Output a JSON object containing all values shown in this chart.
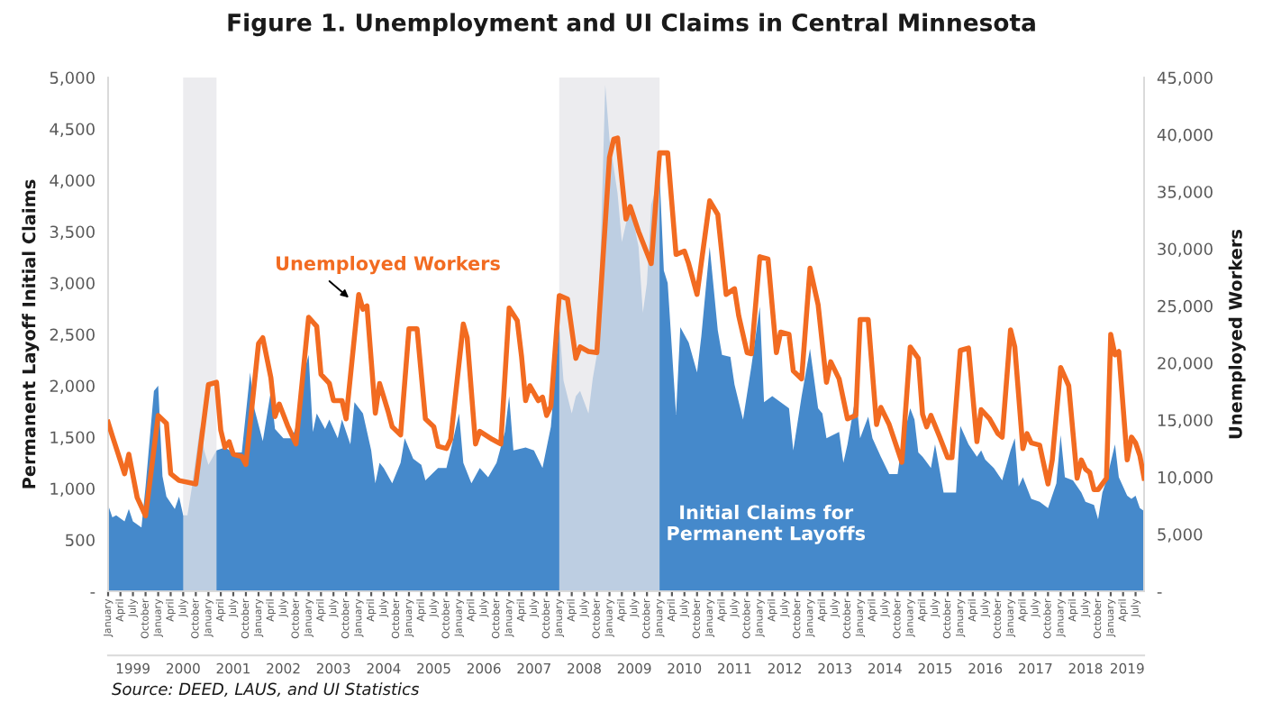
{
  "chart_data": {
    "type": "area",
    "title": "Figure 1. Unemployment and UI Claims in Central Minnesota",
    "ylabel": "Permanent Layoff Initial Claims",
    "y2label": "Unemployed Workers",
    "xlim": [
      "1999-01",
      "2019-09"
    ],
    "xticks": [
      {
        "value": "1999-01",
        "label": "January"
      },
      {
        "value": "1999-04",
        "label": "April"
      },
      {
        "value": "1999-07",
        "label": "July"
      },
      {
        "value": "1999-10",
        "label": "October"
      },
      {
        "value": "2000-01",
        "label": "January"
      },
      {
        "value": "2000-04",
        "label": "April"
      },
      {
        "value": "2000-07",
        "label": "July"
      },
      {
        "value": "2000-10",
        "label": "October"
      },
      {
        "value": "2001-01",
        "label": "January"
      },
      {
        "value": "2001-04",
        "label": "April"
      },
      {
        "value": "2001-07",
        "label": "July"
      },
      {
        "value": "2001-10",
        "label": "October"
      },
      {
        "value": "2002-01",
        "label": "January"
      },
      {
        "value": "2002-04",
        "label": "April"
      },
      {
        "value": "2002-07",
        "label": "July"
      },
      {
        "value": "2002-10",
        "label": "October"
      },
      {
        "value": "2003-01",
        "label": "January"
      },
      {
        "value": "2003-04",
        "label": "April"
      },
      {
        "value": "2003-07",
        "label": "July"
      },
      {
        "value": "2003-10",
        "label": "October"
      },
      {
        "value": "2004-01",
        "label": "January"
      },
      {
        "value": "2004-04",
        "label": "April"
      },
      {
        "value": "2004-07",
        "label": "July"
      },
      {
        "value": "2004-10",
        "label": "October"
      },
      {
        "value": "2005-01",
        "label": "January"
      },
      {
        "value": "2005-04",
        "label": "April"
      },
      {
        "value": "2005-07",
        "label": "July"
      },
      {
        "value": "2005-10",
        "label": "October"
      },
      {
        "value": "2006-01",
        "label": "January"
      },
      {
        "value": "2006-04",
        "label": "April"
      },
      {
        "value": "2006-07",
        "label": "July"
      },
      {
        "value": "2006-10",
        "label": "October"
      },
      {
        "value": "2007-01",
        "label": "January"
      },
      {
        "value": "2007-04",
        "label": "April"
      },
      {
        "value": "2007-07",
        "label": "July"
      },
      {
        "value": "2007-10",
        "label": "October"
      },
      {
        "value": "2008-01",
        "label": "January"
      },
      {
        "value": "2008-04",
        "label": "April"
      },
      {
        "value": "2008-07",
        "label": "July"
      },
      {
        "value": "2008-10",
        "label": "October"
      },
      {
        "value": "2009-01",
        "label": "January"
      },
      {
        "value": "2009-04",
        "label": "April"
      },
      {
        "value": "2009-07",
        "label": "July"
      },
      {
        "value": "2009-10",
        "label": "October"
      },
      {
        "value": "2010-01",
        "label": "January"
      },
      {
        "value": "2010-04",
        "label": "April"
      },
      {
        "value": "2010-07",
        "label": "July"
      },
      {
        "value": "2010-10",
        "label": "October"
      },
      {
        "value": "2011-01",
        "label": "January"
      },
      {
        "value": "2011-04",
        "label": "April"
      },
      {
        "value": "2011-07",
        "label": "July"
      },
      {
        "value": "2011-10",
        "label": "October"
      },
      {
        "value": "2012-01",
        "label": "January"
      },
      {
        "value": "2012-04",
        "label": "April"
      },
      {
        "value": "2012-07",
        "label": "July"
      },
      {
        "value": "2012-10",
        "label": "October"
      },
      {
        "value": "2013-01",
        "label": "January"
      },
      {
        "value": "2013-04",
        "label": "April"
      },
      {
        "value": "2013-07",
        "label": "July"
      },
      {
        "value": "2013-10",
        "label": "October"
      },
      {
        "value": "2014-01",
        "label": "January"
      },
      {
        "value": "2014-04",
        "label": "April"
      },
      {
        "value": "2014-07",
        "label": "July"
      },
      {
        "value": "2014-10",
        "label": "October"
      },
      {
        "value": "2015-01",
        "label": "January"
      },
      {
        "value": "2015-04",
        "label": "April"
      },
      {
        "value": "2015-07",
        "label": "July"
      },
      {
        "value": "2015-10",
        "label": "October"
      },
      {
        "value": "2016-01",
        "label": "January"
      },
      {
        "value": "2016-04",
        "label": "April"
      },
      {
        "value": "2016-07",
        "label": "July"
      },
      {
        "value": "2016-10",
        "label": "October"
      },
      {
        "value": "2017-01",
        "label": "January"
      },
      {
        "value": "2017-04",
        "label": "April"
      },
      {
        "value": "2017-07",
        "label": "July"
      },
      {
        "value": "2017-10",
        "label": "October"
      },
      {
        "value": "2018-01",
        "label": "January"
      },
      {
        "value": "2018-04",
        "label": "April"
      },
      {
        "value": "2018-07",
        "label": "July"
      },
      {
        "value": "2018-10",
        "label": "October"
      },
      {
        "value": "2019-01",
        "label": "January"
      },
      {
        "value": "2019-04",
        "label": "April"
      },
      {
        "value": "2019-07",
        "label": "July"
      }
    ],
    "x2lim": [
      "1999-01",
      "2019-09"
    ],
    "x2ticks": [
      {
        "value": "1999-07",
        "label": "1999"
      },
      {
        "value": "2000-07",
        "label": "2000"
      },
      {
        "value": "2001-07",
        "label": "2001"
      },
      {
        "value": "2002-07",
        "label": "2002"
      },
      {
        "value": "2003-07",
        "label": "2003"
      },
      {
        "value": "2004-07",
        "label": "2004"
      },
      {
        "value": "2005-07",
        "label": "2005"
      },
      {
        "value": "2006-07",
        "label": "2006"
      },
      {
        "value": "2007-07",
        "label": "2007"
      },
      {
        "value": "2008-07",
        "label": "2008"
      },
      {
        "value": "2009-07",
        "label": "2009"
      },
      {
        "value": "2010-07",
        "label": "2010"
      },
      {
        "value": "2011-07",
        "label": "2011"
      },
      {
        "value": "2012-07",
        "label": "2012"
      },
      {
        "value": "2013-07",
        "label": "2013"
      },
      {
        "value": "2014-07",
        "label": "2014"
      },
      {
        "value": "2015-07",
        "label": "2015"
      },
      {
        "value": "2016-07",
        "label": "2016"
      },
      {
        "value": "2017-07",
        "label": "2017"
      },
      {
        "value": "2018-07",
        "label": "2018"
      },
      {
        "value": "2019-05",
        "label": "2019"
      }
    ],
    "ylim": [
      0,
      5000
    ],
    "yticks": [
      {
        "value": 0,
        "label": "-"
      },
      500,
      {
        "value": 1000,
        "label": "1,000"
      },
      {
        "value": 1500,
        "label": "1,500"
      },
      {
        "value": 2000,
        "label": "2,000"
      },
      {
        "value": 2500,
        "label": "2,500"
      },
      {
        "value": 3000,
        "label": "3,000"
      },
      {
        "value": 3500,
        "label": "3,500"
      },
      {
        "value": 4000,
        "label": "4,000"
      },
      {
        "value": 4500,
        "label": "4,500"
      },
      {
        "value": 5000,
        "label": "5,000"
      }
    ],
    "y2lim": [
      0,
      45000
    ],
    "y2ticks": [
      {
        "value": 0,
        "label": "-"
      },
      {
        "value": 5000,
        "label": "5,000"
      },
      {
        "value": 10000,
        "label": "10,000"
      },
      {
        "value": 15000,
        "label": "15,000"
      },
      {
        "value": 20000,
        "label": "20,000"
      },
      {
        "value": 25000,
        "label": "25,000"
      },
      {
        "value": 30000,
        "label": "30,000"
      },
      {
        "value": 35000,
        "label": "35,000"
      },
      {
        "value": 40000,
        "label": "40,000"
      },
      {
        "value": 45000,
        "label": "45,000"
      }
    ],
    "bands": [
      {
        "axis": "x",
        "from": "2000-07",
        "to": "2001-03",
        "color": "#e6e6ea"
      },
      {
        "axis": "x",
        "from": "2008-01",
        "to": "2010-01",
        "color": "#e6e6ea"
      }
    ],
    "annotations": [
      "Source: DEED, LAUS, and UI Statistics"
    ],
    "series": [
      {
        "name": "Initial Claims for\nPermanent Layoffs",
        "color": "#4589cb",
        "x": [
          "1999-01",
          "1999-02",
          "1999-03",
          "1999-05",
          "1999-06",
          "1999-07",
          "1999-09",
          "1999-10",
          "1999-12",
          "2000-01",
          "2000-02",
          "2000-03",
          "2000-05",
          "2000-06",
          "2000-07",
          "2000-08",
          "2000-09",
          "2000-11",
          "2000-12",
          "2001-01",
          "2001-03",
          "2001-05",
          "2001-07",
          "2001-09",
          "2001-11",
          "2001-12",
          "2002-02",
          "2002-04",
          "2002-05",
          "2002-07",
          "2002-09",
          "2002-10",
          "2002-12",
          "2003-01",
          "2003-02",
          "2003-03",
          "2003-05",
          "2003-06",
          "2003-08",
          "2003-09",
          "2003-11",
          "2003-12",
          "2004-02",
          "2004-04",
          "2004-05",
          "2004-06",
          "2004-07",
          "2004-09",
          "2004-11",
          "2004-12",
          "2005-02",
          "2005-04",
          "2005-05",
          "2005-08",
          "2005-10",
          "2005-11",
          "2006-01",
          "2006-02",
          "2006-04",
          "2006-06",
          "2006-08",
          "2006-10",
          "2006-12",
          "2007-01",
          "2007-02",
          "2007-05",
          "2007-07",
          "2007-09",
          "2007-11",
          "2008-01",
          "2008-02",
          "2008-04",
          "2008-05",
          "2008-06",
          "2008-08",
          "2008-09",
          "2008-10",
          "2008-11",
          "2008-12",
          "2009-01",
          "2009-03",
          "2009-04",
          "2009-06",
          "2009-08",
          "2009-09",
          "2009-10",
          "2009-11",
          "2010-01",
          "2010-02",
          "2010-03",
          "2010-05",
          "2010-06",
          "2010-08",
          "2010-10",
          "2010-11",
          "2011-01",
          "2011-03",
          "2011-04",
          "2011-06",
          "2011-07",
          "2011-09",
          "2011-11",
          "2012-01",
          "2012-02",
          "2012-04",
          "2012-06",
          "2012-08",
          "2012-09",
          "2012-11",
          "2013-01",
          "2013-03",
          "2013-04",
          "2013-05",
          "2013-08",
          "2013-09",
          "2013-10",
          "2013-12",
          "2014-01",
          "2014-03",
          "2014-04",
          "2014-06",
          "2014-08",
          "2014-10",
          "2014-11",
          "2015-01",
          "2015-02",
          "2015-03",
          "2015-04",
          "2015-06",
          "2015-07",
          "2015-08",
          "2015-09",
          "2015-12",
          "2016-01",
          "2016-03",
          "2016-05",
          "2016-06",
          "2016-07",
          "2016-09",
          "2016-11",
          "2017-01",
          "2017-02",
          "2017-03",
          "2017-04",
          "2017-06",
          "2017-08",
          "2017-10",
          "2017-12",
          "2018-01",
          "2018-02",
          "2018-04",
          "2018-06",
          "2018-07",
          "2018-09",
          "2018-10",
          "2018-11",
          "2018-12",
          "2019-02",
          "2019-03",
          "2019-05",
          "2019-06",
          "2019-07",
          "2019-08",
          "2019-09"
        ],
        "values": [
          840,
          720,
          740,
          680,
          800,
          680,
          620,
          1020,
          1950,
          2000,
          1120,
          920,
          800,
          920,
          740,
          740,
          1000,
          1600,
          1370,
          1230,
          1370,
          1400,
          1350,
          1350,
          2130,
          1780,
          1460,
          1950,
          1580,
          1490,
          1490,
          1600,
          2150,
          2300,
          1550,
          1730,
          1580,
          1670,
          1490,
          1670,
          1430,
          1840,
          1730,
          1370,
          1050,
          1250,
          1200,
          1050,
          1250,
          1490,
          1290,
          1230,
          1080,
          1200,
          1200,
          1370,
          1730,
          1250,
          1050,
          1200,
          1110,
          1250,
          1550,
          1900,
          1370,
          1400,
          1370,
          1200,
          1600,
          2600,
          2050,
          1730,
          1900,
          1950,
          1730,
          2070,
          2300,
          3470,
          4930,
          4400,
          3870,
          3400,
          3760,
          3350,
          2710,
          3000,
          3760,
          4050,
          3120,
          3000,
          1720,
          2570,
          2420,
          2130,
          2480,
          3350,
          2540,
          2300,
          2280,
          2010,
          1670,
          2190,
          2770,
          1840,
          1900,
          1840,
          1780,
          1370,
          1900,
          2360,
          1780,
          1730,
          1490,
          1550,
          1250,
          1430,
          1910,
          1490,
          1700,
          1490,
          1310,
          1140,
          1140,
          1430,
          1780,
          1670,
          1350,
          1310,
          1200,
          1430,
          1200,
          960,
          960,
          1610,
          1430,
          1310,
          1370,
          1280,
          1200,
          1080,
          1370,
          1490,
          1020,
          1110,
          900,
          870,
          810,
          1050,
          1520,
          1110,
          1080,
          960,
          870,
          840,
          700,
          960,
          1080,
          1430,
          1110,
          930,
          900,
          930,
          810,
          780
        ]
      },
      {
        "name": "Unemployed Workers",
        "type": "line",
        "axis": "y2",
        "color": "#f26b21",
        "x": [
          "1999-01",
          "1999-02",
          "1999-05",
          "1999-06",
          "1999-08",
          "1999-10",
          "2000-01",
          "2000-03",
          "2000-04",
          "2000-06",
          "2000-10",
          "2001-01",
          "2001-03",
          "2001-04",
          "2001-05",
          "2001-06",
          "2001-07",
          "2001-09",
          "2001-10",
          "2002-01",
          "2002-02",
          "2002-04",
          "2002-05",
          "2002-06",
          "2002-08",
          "2002-10",
          "2003-01",
          "2003-03",
          "2003-04",
          "2003-06",
          "2003-07",
          "2003-09",
          "2003-10",
          "2004-01",
          "2004-02",
          "2004-03",
          "2004-05",
          "2004-06",
          "2004-08",
          "2004-09",
          "2004-11",
          "2005-01",
          "2005-03",
          "2005-05",
          "2005-07",
          "2005-08",
          "2005-10",
          "2005-11",
          "2006-02",
          "2006-03",
          "2006-05",
          "2006-06",
          "2006-09",
          "2006-11",
          "2007-01",
          "2007-03",
          "2007-04",
          "2007-05",
          "2007-06",
          "2007-08",
          "2007-09",
          "2007-10",
          "2007-11",
          "2008-01",
          "2008-03",
          "2008-05",
          "2008-06",
          "2008-08",
          "2008-10",
          "2009-01",
          "2009-02",
          "2009-03",
          "2009-05",
          "2009-06",
          "2009-08",
          "2009-11",
          "2010-01",
          "2010-03",
          "2010-05",
          "2010-07",
          "2010-08",
          "2010-10",
          "2011-01",
          "2011-03",
          "2011-05",
          "2011-07",
          "2011-08",
          "2011-10",
          "2011-11",
          "2012-01",
          "2012-03",
          "2012-05",
          "2012-06",
          "2012-08",
          "2012-09",
          "2012-11",
          "2013-01",
          "2013-03",
          "2013-05",
          "2013-06",
          "2013-08",
          "2013-10",
          "2013-12",
          "2014-01",
          "2014-03",
          "2014-05",
          "2014-06",
          "2014-08",
          "2014-11",
          "2015-01",
          "2015-03",
          "2015-04",
          "2015-05",
          "2015-06",
          "2015-08",
          "2015-10",
          "2015-11",
          "2016-01",
          "2016-03",
          "2016-05",
          "2016-06",
          "2016-08",
          "2016-10",
          "2016-11",
          "2017-01",
          "2017-02",
          "2017-04",
          "2017-05",
          "2017-06",
          "2017-08",
          "2017-10",
          "2017-11",
          "2018-01",
          "2018-03",
          "2018-05",
          "2018-06",
          "2018-07",
          "2018-08",
          "2018-09",
          "2018-10",
          "2018-12",
          "2019-01",
          "2019-02",
          "2019-03",
          "2019-05",
          "2019-06",
          "2019-07",
          "2019-08",
          "2019-09"
        ],
        "values": [
          14800,
          13600,
          10300,
          12000,
          8200,
          6600,
          15400,
          14700,
          10300,
          9700,
          9400,
          18100,
          18300,
          14100,
          12600,
          13100,
          12000,
          11800,
          11100,
          21700,
          22200,
          18700,
          15300,
          16400,
          14500,
          12900,
          24000,
          23200,
          19000,
          18200,
          16700,
          16700,
          15100,
          26000,
          24700,
          25000,
          15600,
          18200,
          15800,
          14400,
          13700,
          23000,
          23000,
          15100,
          14400,
          12700,
          12500,
          13300,
          23400,
          22200,
          12900,
          14000,
          13300,
          12900,
          24800,
          23700,
          20600,
          16700,
          18000,
          16700,
          17000,
          15400,
          16200,
          25900,
          25600,
          20400,
          21400,
          21000,
          20900,
          38000,
          39600,
          39700,
          32600,
          33700,
          31500,
          28700,
          38400,
          38400,
          29500,
          29800,
          28700,
          26000,
          34200,
          33000,
          26000,
          26500,
          24100,
          20900,
          20800,
          29300,
          29100,
          20900,
          22700,
          22500,
          19300,
          18600,
          28300,
          25100,
          18300,
          20100,
          18600,
          15100,
          15400,
          23800,
          23800,
          14600,
          16100,
          14600,
          11300,
          21400,
          20400,
          15500,
          14400,
          15400,
          13600,
          11700,
          11700,
          21100,
          21300,
          13100,
          15900,
          15100,
          13800,
          13500,
          22900,
          21400,
          12500,
          13800,
          13000,
          12800,
          9400,
          11500,
          19600,
          18000,
          9900,
          11500,
          10700,
          10400,
          8900,
          8900,
          9900,
          22500,
          20700,
          21000,
          11500,
          13500,
          13000,
          11900,
          9900
        ]
      }
    ]
  }
}
